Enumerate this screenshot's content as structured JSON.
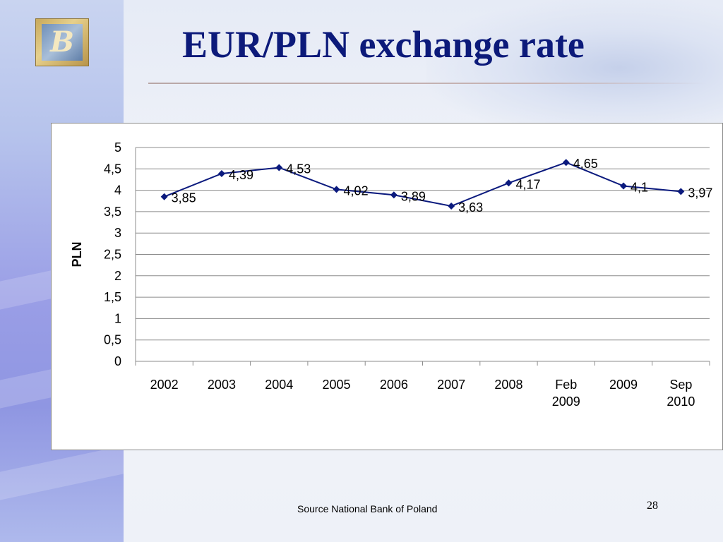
{
  "slide": {
    "title": "EUR/PLN exchange rate",
    "source": "Source National Bank of Poland",
    "page_number": "28",
    "logo_icon": "bank-logo-icon",
    "title_color": "#0c1a7a"
  },
  "chart_data": {
    "type": "line",
    "title": "",
    "xlabel": "",
    "ylabel": "PLN",
    "categories": [
      "2002",
      "2003",
      "2004",
      "2005",
      "2006",
      "2007",
      "2008",
      "Feb 2009",
      "2009",
      "Sep 2010"
    ],
    "series": [
      {
        "values": [
          3.85,
          4.39,
          4.53,
          4.02,
          3.89,
          3.63,
          4.17,
          4.65,
          4.1,
          3.97
        ],
        "data_labels": [
          "3,85",
          "4,39",
          "4,53",
          "4,02",
          "3,89",
          "3,63",
          "4,17",
          "4,65",
          "4,1",
          "3,97"
        ],
        "color": "#0b1a7e",
        "marker": "diamond"
      }
    ],
    "ylim": [
      0,
      5
    ],
    "y_ticks": [
      0,
      0.5,
      1,
      1.5,
      2,
      2.5,
      3,
      3.5,
      4,
      4.5,
      5
    ],
    "y_tick_labels": [
      "0",
      "0,5",
      "1",
      "1,5",
      "2",
      "2,5",
      "3",
      "3,5",
      "4",
      "4,5",
      "5"
    ],
    "grid": true,
    "legend": "none"
  }
}
